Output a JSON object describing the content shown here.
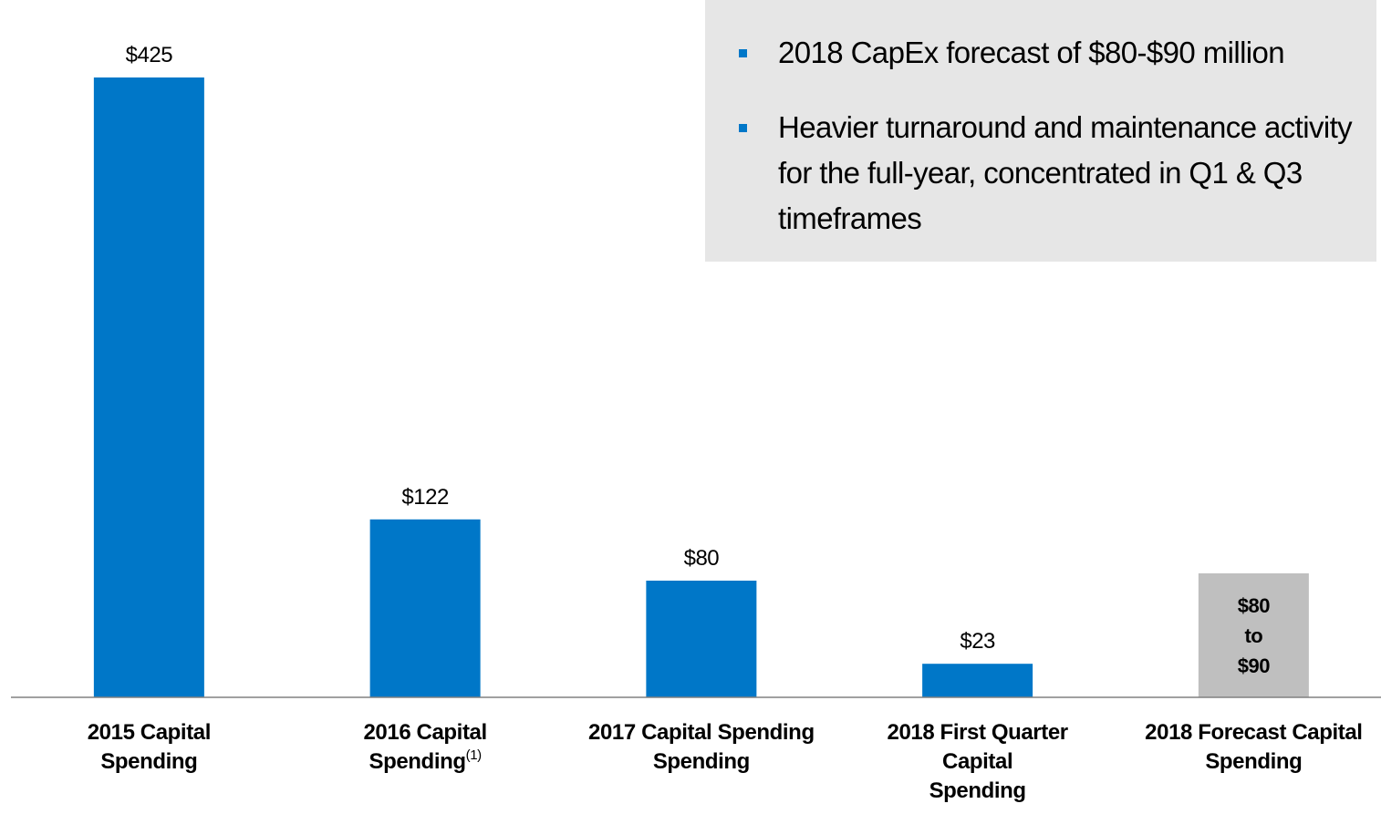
{
  "chart_data": {
    "type": "bar",
    "categories": [
      "2015 Capital\nSpending",
      "2016 Capital\nSpending",
      "2017 Capital Spending\nSpending",
      "2018 First Quarter\nCapital\nSpending",
      "2018 Forecast Capital\nSpending"
    ],
    "footnotes": [
      null,
      "(1)",
      null,
      null,
      null
    ],
    "values": [
      425,
      122,
      80,
      23,
      85
    ],
    "value_labels": [
      "$425",
      "$122",
      "$80",
      "$23",
      "$80\nto\n$90"
    ],
    "colors": [
      "#0077c8",
      "#0077c8",
      "#0077c8",
      "#0077c8",
      "#bfbfbf"
    ],
    "ylim": [
      0,
      425
    ],
    "bullets": [
      "2018 CapEx forecast of $80-$90 million",
      "Heavier turnaround and maintenance activity for the full-year, concentrated in Q1 & Q3 timeframes"
    ]
  }
}
